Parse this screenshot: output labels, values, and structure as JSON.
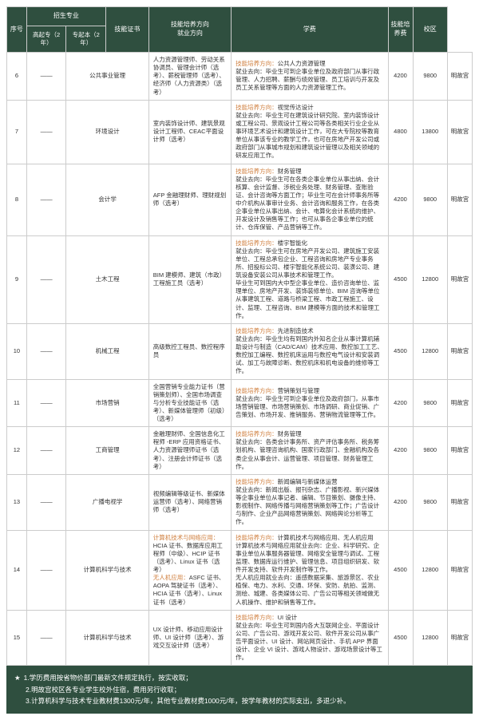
{
  "header": {
    "idx": "序号",
    "major_group": "招生专业",
    "sub_a": "高起专（2 年）",
    "sub_b": "专起本（2 年）",
    "cert": "技能证书",
    "dir": "技能培养方向\n就业方向",
    "fee1": "学费",
    "fee2": "技能培养费",
    "campus": "校区"
  },
  "rows": [
    {
      "idx": "6",
      "a": "——",
      "b": "公共事业管理",
      "cert": "人力资源管理师、劳动关系协调员、管理会计师（选考）、薪税管理师（选考）、经济师（人力资源类）（选考）",
      "dir_h": "技能培养方向：",
      "dir_t": "公共人力资源管理",
      "dir_b": "就业去向：毕业生可到企事业单位及政府部门从事行政管理、人力招聘、薪酬与绩效管理、员工培训与开发及员工关系管理等方面的人力资源管理工作。",
      "fee1": "4200",
      "fee2": "9800",
      "campus": "明故宫"
    },
    {
      "idx": "7",
      "a": "——",
      "b": "环境设计",
      "cert": "室内装饰设计师、建筑景观设计工程师、CEAC平面设计师（选考）",
      "dir_h": "技能培养方向：",
      "dir_t": "视觉传达设计",
      "dir_b": "就业去向：毕业生可在建筑设计研究院、室内装饰设计或工程公司、景观设计工程公司等各类相关行业企业从事环境艺术设计和建筑设计工作，可在大专院校等教育单位从事该专业的教学工作，也可在房地产开发公司或政府部门从事城市规划和建筑设计管理以及相关领域的研发应用工作。",
      "fee1": "4800",
      "fee2": "13800",
      "campus": "明故宫"
    },
    {
      "idx": "8",
      "a": "——",
      "b": "会计学",
      "cert": "AFP 金融理财师、理财规划师（选考）",
      "dir_h": "技能培养方向：",
      "dir_t": "财务管理",
      "dir_b": "就业去向：毕业生可在各类企事业单位从事出纳、会计核算、会计监督、涉税业务处理、财务管理、查账验证、会计咨询等方面工作；毕业生可在会计师事务所等中介机构从事审计业务、会计咨询和服务工作，在各类企事业单位从事出纳、会计、电算化会计系统的维护、开发设计及销售等工作；也可从事各企事业单位的统计、仓库保管、产品营销等工作。",
      "fee1": "4200",
      "fee2": "9800",
      "campus": "明故宫"
    },
    {
      "idx": "9",
      "a": "——",
      "b": "土木工程",
      "cert": "BIM 建模师、建筑（市政）工程施工员（选考）",
      "dir_h": "技能培养方向：",
      "dir_t": "楼宇智能化",
      "dir_b": "就业去向：毕业生可在房地产开发公司、建筑施工安装单位、工程总承包企业、工程咨询和房地产专业事务所、招投标公司、楼宇智能化系统公司、装潢公司、建筑设备安装公司从事技术和管理工作。\n毕业生可到国内大中型企事业单位、造价咨询单位、监理单位、房地产开发、装饰装修单位、BIM 咨询等单位从事建筑工程、道路与桥梁工程、市政工程施工、设计、监理、工程咨询、BIM 建模等方面的技术和管理工作。",
      "fee1": "4500",
      "fee2": "12800",
      "campus": "明故宫"
    },
    {
      "idx": "10",
      "a": "——",
      "b": "机械工程",
      "cert": "高级数控工程员、数控程序员",
      "dir_h": "技能培养方向：",
      "dir_t": "先进制造技术",
      "dir_b": "就业去向：毕业生均有到国内外知名企业从事计算机辅助设计与制造（CAD/CAM）技术应用、数控加工工艺、数控加工编程、数控机床运用与数控电气设计和安装调试、加工与故障诊断、数控机床和机电设备的维修等工作。",
      "fee1": "4500",
      "fee2": "12800",
      "campus": "明故宫"
    },
    {
      "idx": "11",
      "a": "——",
      "b": "市场营销",
      "cert": "全国营销专业能力证书（营销策划师）、全国市场调查与分析专业技能证书（选考）、新媒体管理师（初级）（选考）",
      "dir_h": "技能培养方向：",
      "dir_t": "营销策划与管理",
      "dir_b": "就业去向：毕业生可到企事业单位及政府部门，从事市场营销管理、市场营销策划、市场调研、商业促销、广告策划、市场开发、推销服务、营销物流管理等工作。",
      "fee1": "4200",
      "fee2": "9800",
      "campus": "明故宫"
    },
    {
      "idx": "12",
      "a": "——",
      "b": "工商管理",
      "cert": "金融理财师、全国信息化工程师 -ERP 应用资格证书、人力资源管理师证书（选考）、注册会计师证书（选考）",
      "dir_h": "技能培养方向：",
      "dir_t": "财务管理",
      "dir_b": "就业去向：各类会计事务所、资产评估事务所、税务筹划机构、管理咨询机构、国家行政部门、金融机构及各类企业从事会计、运营管理、项目管理、财务管理工作。",
      "fee1": "4200",
      "fee2": "9800",
      "campus": "明故宫"
    },
    {
      "idx": "13",
      "a": "——",
      "b": "广播电视学",
      "cert": "视频编辑等级证书、新媒体运营师（选考）、网络营销师（选考）",
      "dir_h": "技能培养方向：",
      "dir_t": "新闻编辑与新媒体运营",
      "dir_b": "就业去向：新闻出版、报刊杂志、广播影视、新兴媒体等企事业单位从事记者、编辑、节目策划、摄像主持、影视制作、网络传播与网络营销策划等工作；广告设计与制作、企业产品网络营销策划、网络舆论分析等工作。",
      "fee1": "4200",
      "fee2": "9800",
      "campus": "明故宫"
    },
    {
      "idx": "14",
      "a": "——",
      "b": "计算机科学与技术",
      "cert_html": "<span class='orange'>计算机技术与网络应用：</span>HCIA 证书、数据库应用工程师（中级）、HCIP 证书（选考）、Linux 证书（选考）<br><span class='orange'>无人机应用：</span>ASFC 证书、AOPA 驾驶证书（选考）、HCIA 证书（选考）、Linux 证书（选考）",
      "dir_h": "技能培养方向：",
      "dir_t": "计算机技术与网络应用、无人机应用",
      "dir_b": "计算机技术与网络应用就业去向：企业、科学研究、企事业单位从事服务器管理、网络安全管理与调试、工程监理、数据库运行维护、管理信息、项目组织研发、软件开发支持、软件开发制作等工作。\n无人机应用就业去向：遥感数据采集、旅游景区、农业植保、电力、水利、交通、环保、安防、航拍、监测、测绘、城建、各类媒体公司、广告公司等相关领域做无人机操作、维护和销售等工作。",
      "fee1": "4500",
      "fee2": "12800",
      "campus": "明故宫"
    },
    {
      "idx": "15",
      "a": "——",
      "b": "计算机科学与技术",
      "cert": "UX 设计师、移动应用设计师、UI 设计师（选考）、游戏交互设计师（选考）",
      "dir_h": "技能培养方向：",
      "dir_t": "UI 设计",
      "dir_b": "就业去向：毕业生可到国内各大互联网企业、平面设计公司、广告公司、游戏开发公司、软件开发公司从事广告平面设计、UI 设计、网站网页设计、手机 APP 界面设计、企业 VI 设计、游戏人物设计、游戏场景设计等工作。",
      "fee1": "4500",
      "fee2": "12800",
      "campus": "明故宫"
    }
  ],
  "footnotes": [
    "1.学历费用按省物价部门最新文件规定执行，按实收取；",
    "2.明故宫校区各专业学生校外住宿，费用另行收取；",
    "3.计算机科学与技术专业教材费1300元/年，其他专业教材费1000元/年，按学年教材的实际支出，多退少补。"
  ]
}
